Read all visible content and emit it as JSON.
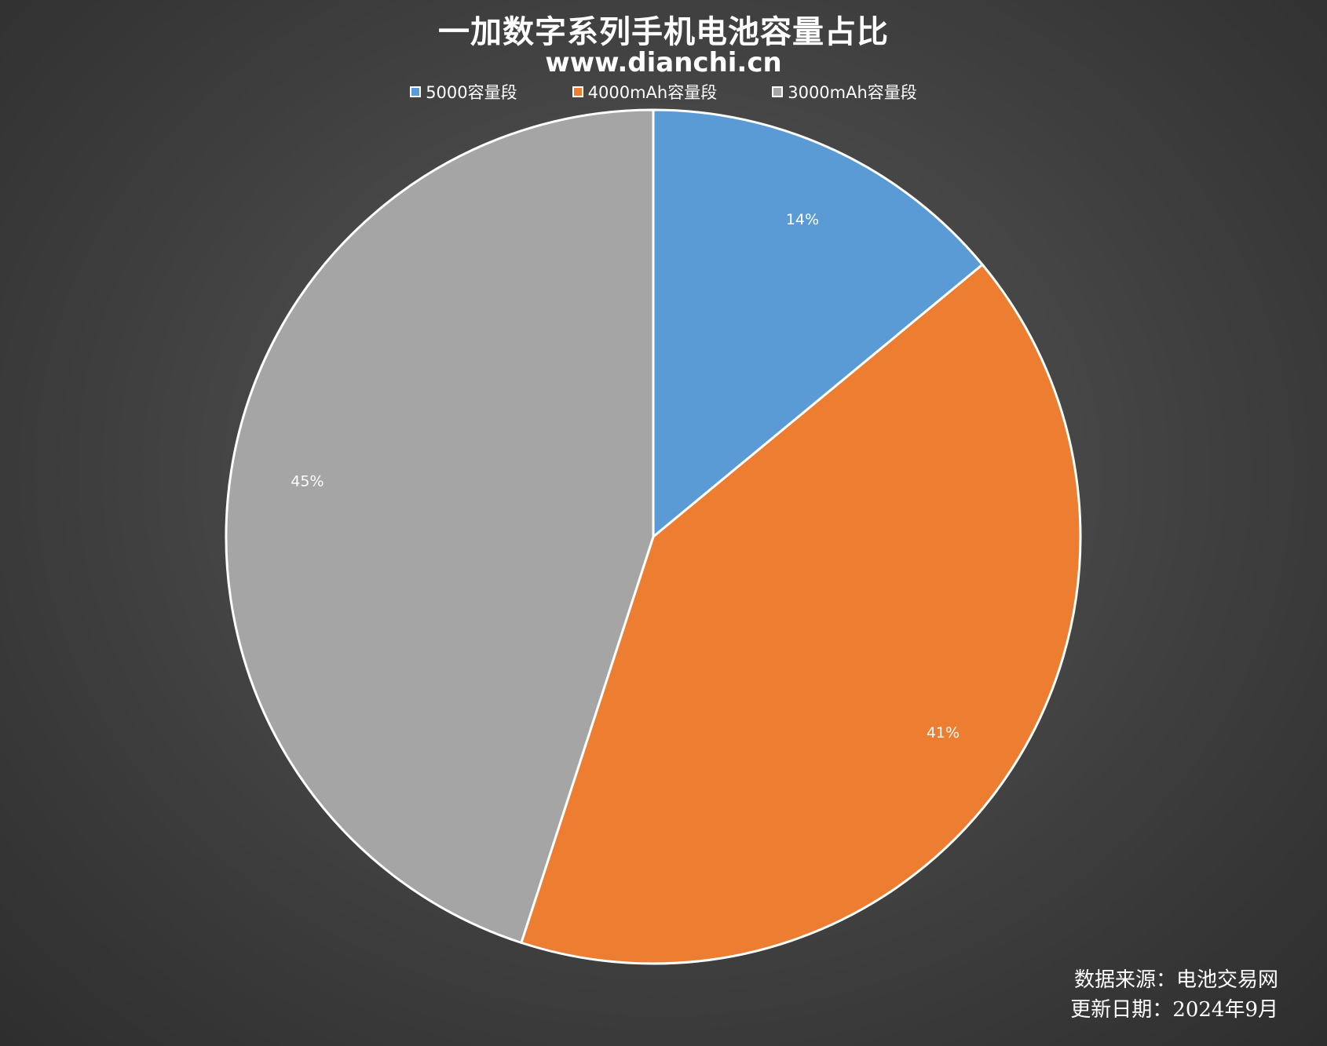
{
  "chart_data": {
    "type": "pie",
    "title": "一加数字系列手机电池容量占比",
    "subtitle": "www.dianchi.cn",
    "legend_position": "top",
    "categories": [
      "5000容量段",
      "4000mAh容量段",
      "3000mAh容量段"
    ],
    "values": [
      14,
      41,
      45
    ],
    "labels": [
      "14%",
      "41%",
      "45%"
    ],
    "colors": [
      "#5b9bd5",
      "#ed7d31",
      "#a5a5a5"
    ]
  },
  "footer": {
    "source": "数据来源：电池交易网",
    "date": "更新日期：2024年9月"
  }
}
